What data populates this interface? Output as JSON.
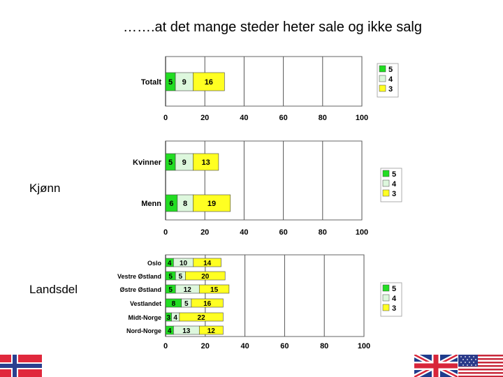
{
  "slide": {
    "title": "…….at det mange steder heter sale og ikke salg",
    "label_gender": "Kjønn",
    "label_region": "Landsdel"
  },
  "colors": {
    "s5": "#22dd22",
    "s4": "#ddf7dd",
    "s3": "#ffff22",
    "grid": "#000000"
  },
  "chart_data": [
    {
      "type": "bar",
      "orientation": "horizontal",
      "stacked": true,
      "categories": [
        "Totalt"
      ],
      "series": [
        {
          "name": "5",
          "values": [
            5
          ]
        },
        {
          "name": "4",
          "values": [
            9
          ]
        },
        {
          "name": "3",
          "values": [
            16
          ]
        }
      ],
      "xlim": [
        0,
        100
      ],
      "xticks": [
        0,
        20,
        40,
        60,
        80,
        100
      ],
      "legend": "right",
      "grid": true
    },
    {
      "type": "bar",
      "orientation": "horizontal",
      "stacked": true,
      "categories": [
        "Kvinner",
        "Menn"
      ],
      "series": [
        {
          "name": "5",
          "values": [
            5,
            6
          ]
        },
        {
          "name": "4",
          "values": [
            9,
            8
          ]
        },
        {
          "name": "3",
          "values": [
            13,
            19
          ]
        }
      ],
      "xlim": [
        0,
        100
      ],
      "xticks": [
        0,
        20,
        40,
        60,
        80,
        100
      ],
      "legend": "right",
      "grid": true
    },
    {
      "type": "bar",
      "orientation": "horizontal",
      "stacked": true,
      "categories": [
        "Oslo",
        "Vestre Østland",
        "Østre Østland",
        "Vestlandet",
        "Midt-Norge",
        "Nord-Norge"
      ],
      "series": [
        {
          "name": "5",
          "values": [
            4,
            5,
            5,
            8,
            3,
            4
          ]
        },
        {
          "name": "4",
          "values": [
            10,
            5,
            12,
            5,
            4,
            13
          ]
        },
        {
          "name": "3",
          "values": [
            14,
            20,
            15,
            16,
            22,
            12
          ]
        }
      ],
      "xlim": [
        0,
        100
      ],
      "xticks": [
        0,
        20,
        40,
        60,
        80,
        100
      ],
      "legend": "right",
      "grid": true
    }
  ]
}
